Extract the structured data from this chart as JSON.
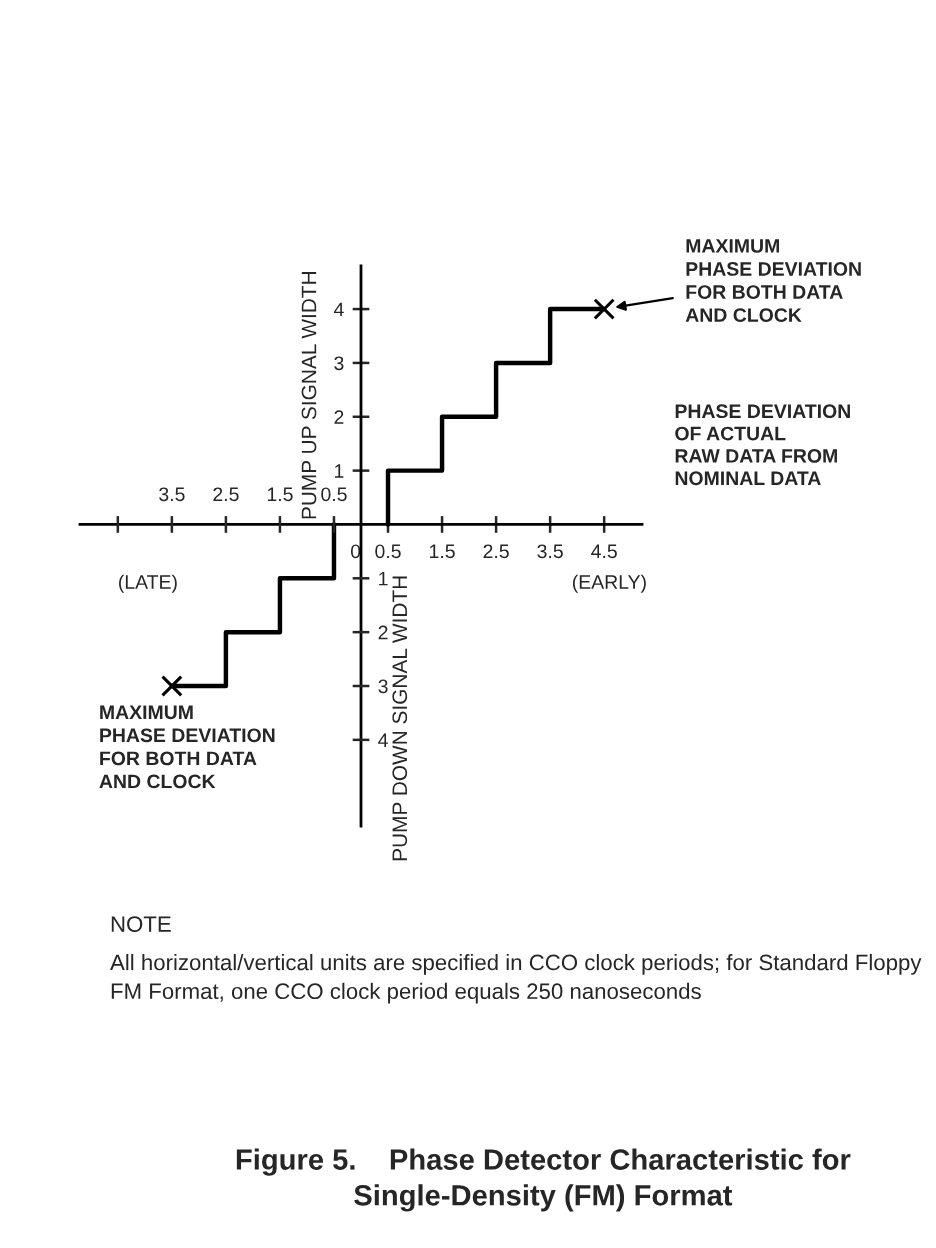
{
  "chart_data": {
    "type": "line",
    "title": "Figure 5.    Phase Detector Characteristic for\nSingle-Density (FM) Format",
    "xlabel": "PHASE DEVIATION\nOF ACTUAL\nRAW DATA FROM\nNOMINAL DATA",
    "ylabel": "PUMP UP SIGNAL WIDTH",
    "series": [
      {
        "color": "#000000",
        "x": [
          0.5,
          0.5,
          1.5,
          1.5,
          2.5,
          2.5,
          3.5,
          3.5,
          4.5
        ],
        "values": [
          0,
          1,
          1,
          2,
          2,
          3,
          3,
          4,
          4
        ]
      },
      {
        "color": "#000000",
        "x": [
          -0.5,
          -0.5,
          -1.5,
          -1.5,
          -2.5,
          -2.5,
          -3.5
        ],
        "values": [
          0,
          -1,
          -1,
          -2,
          -2,
          -3,
          -3
        ]
      },
      {
        "type": "scatter",
        "color": "#000000",
        "marker": "cross",
        "x": [
          4.5,
          -3.5
        ],
        "values": [
          4,
          -3
        ]
      }
    ],
    "xlim": [
      -5.2,
      5.2
    ],
    "ylim": [
      -5.6,
      4.8
    ],
    "xticks": [
      0,
      0.5,
      1.5,
      2.5,
      3.5,
      4.5
    ],
    "x2lim": [
      -5.2,
      5.2
    ],
    "x2ticks": [
      {
        "value": -4.5,
        "label": null
      },
      {
        "value": -3.5,
        "label": "3.5"
      },
      {
        "value": -2.5,
        "label": "2.5"
      },
      {
        "value": -1.5,
        "label": "1.5"
      },
      {
        "value": -0.5,
        "label": "0.5"
      }
    ],
    "yticks": [
      1,
      2,
      3,
      4
    ],
    "y2lim": [
      -5.6,
      4.8
    ],
    "y2ticks": [
      {
        "value": -4,
        "label": "4"
      },
      {
        "value": -3,
        "label": "3"
      },
      {
        "value": -2,
        "label": "2"
      },
      {
        "value": -1,
        "label": "1"
      }
    ],
    "annotations": [
      {
        "text": "MAXIMUM\nPHASE DEVIATION\nFOR BOTH DATA\nAND CLOCK",
        "x": 4.5,
        "y": 4
      },
      {
        "text": "MAXIMUM\nPHASE DEVIATION\nFOR BOTH DATA\nAND CLOCK",
        "x": -3.5,
        "y": -3
      },
      "(LATE)",
      "(EARLY)",
      "PUMP DOWN SIGNAL WIDTH",
      "NOTE",
      "All horizontal/vertical units are specified in CCO clock periods; for Standard Floppy FM Format, one CCO clock period equals 250 nanoseconds"
    ]
  }
}
